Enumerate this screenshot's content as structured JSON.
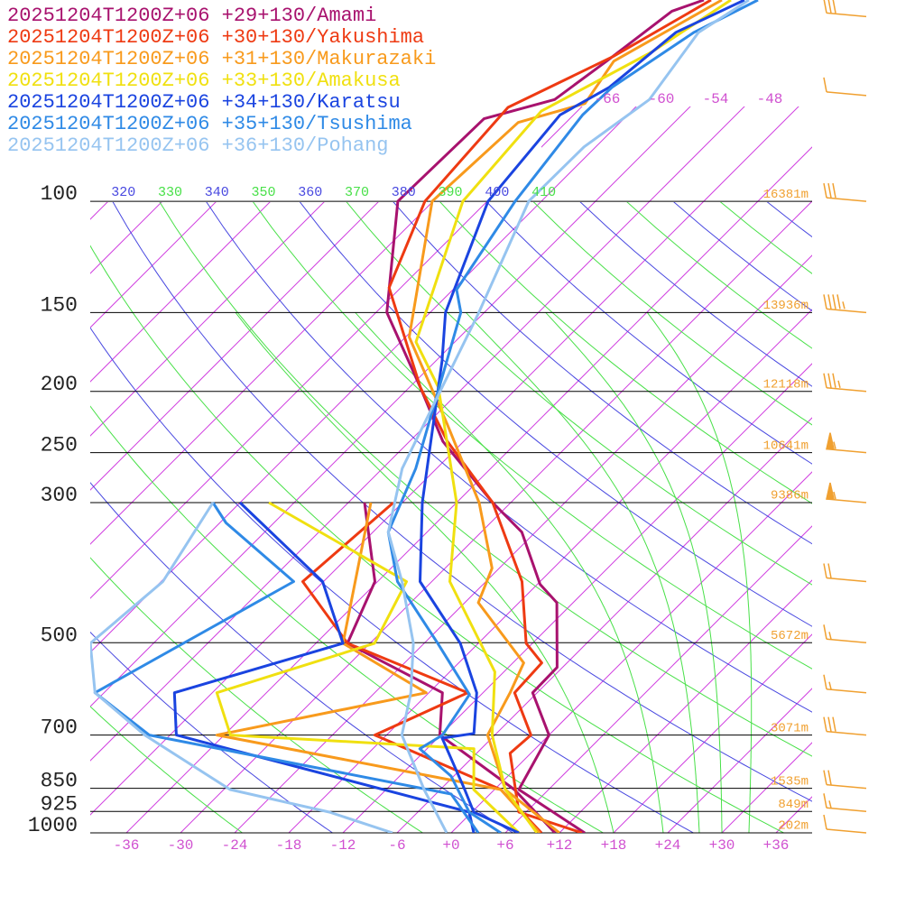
{
  "chart_data": {
    "type": "skew-t",
    "ylim": [
      1000,
      48
    ],
    "yticks": [
      100,
      150,
      200,
      250,
      300,
      500,
      700,
      850,
      925,
      1000
    ],
    "height_labels": [
      "16381m",
      "13936m",
      "12118m",
      "10641m",
      "9386m",
      "5672m",
      "3071m",
      "1535m",
      "849m",
      "202m"
    ],
    "xlim": [
      -40,
      40
    ],
    "xticks": [
      -36,
      -30,
      -24,
      -18,
      -12,
      -6,
      {
        "value": 0,
        "label": "+0"
      },
      {
        "value": 6,
        "label": "+6"
      },
      {
        "value": 12,
        "label": "+12"
      },
      {
        "value": 18,
        "label": "+18"
      },
      {
        "value": 24,
        "label": "+24"
      },
      {
        "value": 30,
        "label": "+30"
      },
      {
        "value": 36,
        "label": "+36"
      }
    ],
    "isotherm_labels": [
      -66,
      -60,
      -54,
      -48
    ],
    "theta_ticks": [
      320,
      330,
      340,
      350,
      360,
      370,
      380,
      390,
      400,
      410
    ],
    "series": [
      {
        "name": "20251204T1200Z+06 +29+130/Amami",
        "color": "#a8126e",
        "pressure": [
          1000,
          854,
          700,
          600,
          547,
          432,
          404,
          334,
          300,
          240,
          197,
          150,
          100,
          74,
          69,
          60,
          50,
          48
        ],
        "temperature": [
          14.8,
          2.7,
          0,
          -6.5,
          -6.6,
          -13.8,
          -17.7,
          -25.5,
          -32,
          -44.3,
          -52.8,
          -64.8,
          -75.9,
          -75.5,
          -69.8,
          -68.3,
          -66.6,
          -64.3
        ],
        "dewpoint_pressure": [
          1000,
          854,
          700,
          600,
          501,
          400,
          300
        ],
        "dewpoint": [
          11.5,
          2.2,
          -12.1,
          -16.5,
          -32.5,
          -36.3,
          -46.2
        ]
      },
      {
        "name": "20251204T1200Z+06 +30+130/Yakushima",
        "color": "#ee3a12",
        "pressure": [
          1000,
          927,
          748,
          700,
          600,
          538,
          501,
          400,
          300,
          240,
          197,
          137,
          100,
          71,
          59,
          48
        ],
        "temperature": [
          14.5,
          5.2,
          -2.3,
          -2.0,
          -8.5,
          -8.8,
          -12.7,
          -20,
          -32,
          -43.8,
          -52.8,
          -67.3,
          -72.9,
          -74.1,
          -68.1,
          -63.5
        ],
        "dewpoint_pressure": [
          1000,
          854,
          700,
          600,
          501,
          400,
          300
        ],
        "dewpoint": [
          10,
          0.7,
          -19.3,
          -13.7,
          -32.5,
          -44.3,
          -43
        ]
      },
      {
        "name": "20251204T1200Z+06 +31+130/Makurazaki",
        "color": "#f89a1c",
        "pressure": [
          1000,
          854,
          700,
          600,
          538,
          432,
          381,
          300,
          225,
          164,
          100,
          75,
          70,
          60,
          48
        ],
        "temperature": [
          12,
          1.2,
          -6.8,
          -9,
          -10.8,
          -22.5,
          -24.8,
          -33.5,
          -45.8,
          -59.6,
          -72.1,
          -71.3,
          -66,
          -67.5,
          -62.3
        ],
        "dewpoint_pressure": [
          1000,
          854,
          700,
          600,
          501,
          300
        ],
        "dewpoint": [
          9.8,
          0.7,
          -36.8,
          -18.3,
          -33,
          -45.5
        ]
      },
      {
        "name": "20251204T1200Z+06 +33+130/Amakusa",
        "color": "#f0e010",
        "pressure": [
          1000,
          854,
          700,
          556,
          400,
          300,
          197,
          167,
          100,
          72,
          58,
          48
        ],
        "temperature": [
          9.5,
          1.2,
          -6.3,
          -13,
          -28,
          -36,
          -50.8,
          -58.3,
          -68.7,
          -70,
          -64.3,
          -61.3
        ],
        "dewpoint_pressure": [
          1000,
          854,
          736,
          700,
          600,
          501,
          400,
          300
        ],
        "dewpoint": [
          7.5,
          -2.3,
          -6.8,
          -35.3,
          -41.5,
          -29.5,
          -32.8,
          -56.8
        ]
      },
      {
        "name": "20251204T1200Z+06 +34+130/Karatsu",
        "color": "#1a44e0",
        "pressure": [
          1000,
          927,
          854,
          708,
          696,
          600,
          501,
          400,
          300,
          179,
          150,
          100,
          73,
          66,
          54,
          48
        ],
        "temperature": [
          7.5,
          0.2,
          -3.3,
          -11.5,
          -8.5,
          -12.7,
          -20,
          -31.3,
          -39.8,
          -53.3,
          -58.3,
          -65.9,
          -67.5,
          -65.1,
          -63.8,
          -59.8
        ],
        "dewpoint_pressure": [
          1000,
          927,
          700,
          600,
          501,
          400,
          300
        ],
        "dewpoint": [
          2.5,
          -0.3,
          -41.3,
          -46.2,
          -33,
          -42.1,
          -60
        ]
      },
      {
        "name": "20251204T1200Z+06 +35+130/Tsushima",
        "color": "#2f8ae6",
        "pressure": [
          1000,
          927,
          813,
          736,
          700,
          604,
          501,
          400,
          334,
          265,
          150,
          138,
          100,
          73,
          66,
          54,
          48
        ],
        "temperature": [
          5.5,
          -0.3,
          -6.3,
          -12.8,
          -11.8,
          -13.3,
          -22.5,
          -33.8,
          -40.3,
          -44.3,
          -56.6,
          -59.6,
          -62.9,
          -65,
          -64.8,
          -61.8,
          -58.3
        ],
        "dewpoint_pressure": [
          1000,
          868,
          700,
          600,
          400,
          323,
          300
        ],
        "dewpoint": [
          3,
          -4.3,
          -44.3,
          -55,
          -45.3,
          -59.3,
          -63
        ]
      },
      {
        "name": "20251204T1200Z+06 +36+130/Pohang",
        "color": "#96c4f0",
        "pressure": [
          1000,
          854,
          700,
          600,
          501,
          400,
          334,
          265,
          150,
          100,
          82,
          69,
          54,
          48
        ],
        "temperature": [
          -0.5,
          -7.8,
          -16.3,
          -20,
          -25.2,
          -33.3,
          -40.3,
          -45.8,
          -54.6,
          -61.4,
          -61.3,
          -59.3,
          -61.3,
          -59.3
        ],
        "dewpoint_pressure": [
          1000,
          927,
          854,
          700,
          600,
          501,
          400,
          300
        ],
        "dewpoint": [
          -6.5,
          -15.8,
          -29.3,
          -44.8,
          -55,
          -61,
          -59.8,
          -63
        ]
      }
    ],
    "wind": {
      "pressure": [
        51,
        68,
        100,
        150,
        200,
        250,
        300,
        400,
        500,
        600,
        700,
        850,
        925,
        1000
      ],
      "speed": [
        30,
        10,
        30,
        45,
        35,
        55,
        55,
        20,
        15,
        15,
        30,
        20,
        15,
        10
      ],
      "color": "#f0a030"
    }
  }
}
